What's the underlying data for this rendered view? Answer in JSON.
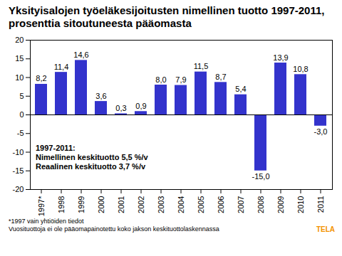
{
  "chart_data": {
    "type": "bar",
    "title": "Yksityisalojen työeläkesijoitusten nimellinen tuotto 1997-2011, prosenttia sitoutuneesta pääomasta",
    "categories": [
      "1997*",
      "1998",
      "1999",
      "2000",
      "2001",
      "2002",
      "2003",
      "2004",
      "2005",
      "2006",
      "2007",
      "2008",
      "2009",
      "2010",
      "2011"
    ],
    "values": [
      8.2,
      11.4,
      14.6,
      3.6,
      0.3,
      0.9,
      8.0,
      7.9,
      11.5,
      8.7,
      5.4,
      -15.0,
      13.9,
      10.8,
      -3.0
    ],
    "value_labels": [
      "8,2",
      "11,4",
      "14,6",
      "3,6",
      "0,3",
      "0,9",
      "8,0",
      "7,9",
      "11,5",
      "8,7",
      "5,4",
      "-15,0",
      "13,9",
      "10,8",
      "-3,0"
    ],
    "color": "#3333cc",
    "ylim": [
      -20,
      20
    ],
    "yticks": [
      -20,
      -15,
      -10,
      -5,
      0,
      5,
      10,
      15,
      20
    ],
    "grid": false,
    "data_labels": true,
    "annotations": [
      "1997-2011:",
      "Nimellinen keskituotto 5,5 %/v",
      "Reaalinen keskituotto 3,7 %/v"
    ],
    "footnotes": [
      "*1997 vain yhtiöiden tiedot",
      "Vuosituottoja ei ole pääomapainotettu koko jakson keskituottolaskennassa"
    ],
    "source": "TELA"
  }
}
